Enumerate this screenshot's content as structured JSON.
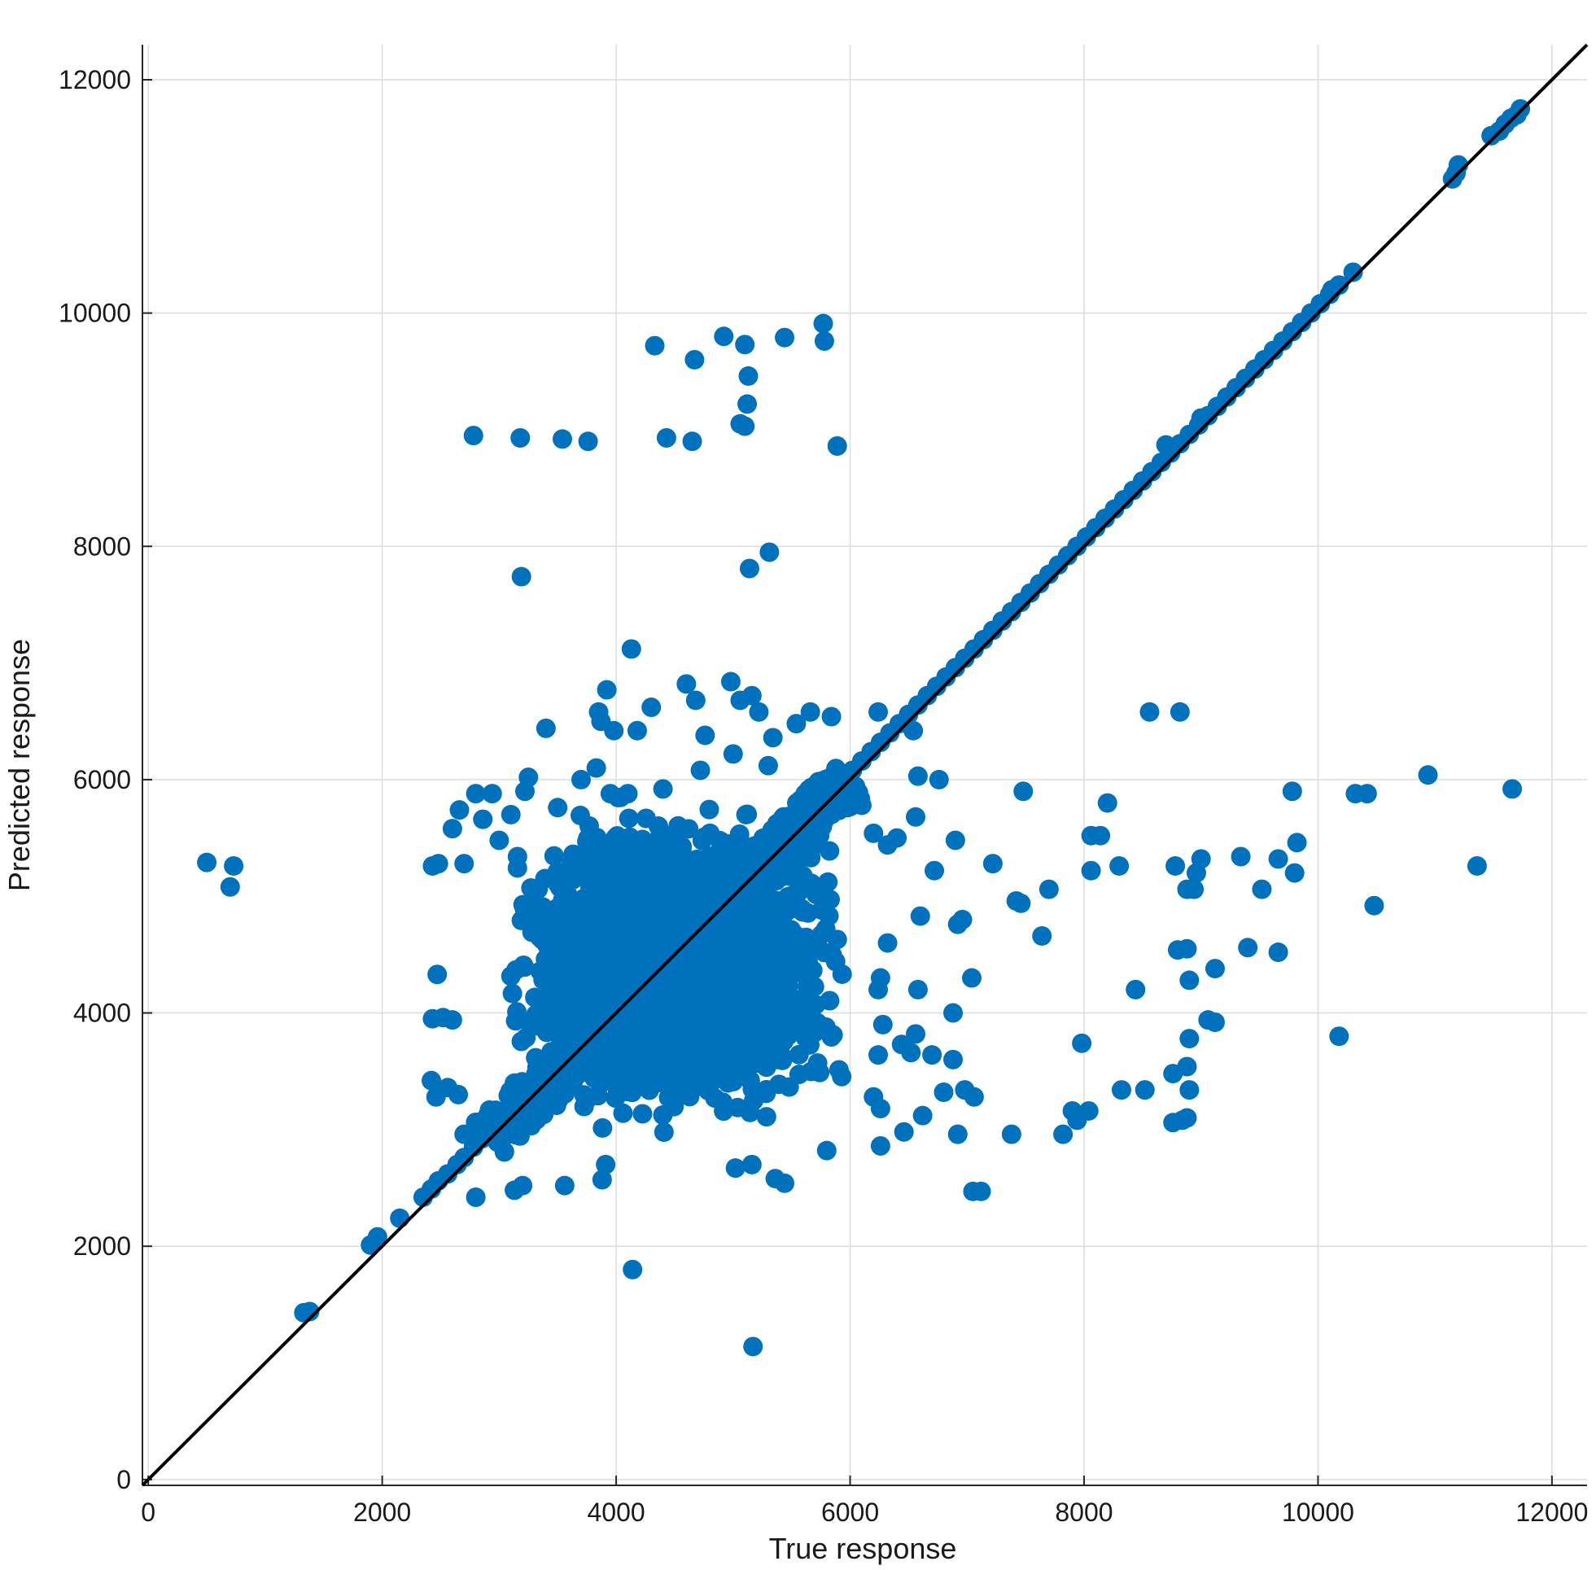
{
  "chart_data": {
    "type": "scatter",
    "title": "",
    "xlabel": "True response",
    "ylabel": "Predicted response",
    "xlim": [
      -50,
      12300
    ],
    "ylim": [
      -50,
      12300
    ],
    "xticks": [
      0,
      2000,
      4000,
      6000,
      8000,
      10000,
      12000
    ],
    "yticks": [
      0,
      2000,
      4000,
      6000,
      8000,
      10000,
      12000
    ],
    "xtick_labels": [
      "0",
      "2000",
      "4000",
      "6000",
      "8000",
      "10000",
      "12000"
    ],
    "ytick_labels": [
      "0",
      "2000",
      "4000",
      "6000",
      "8000",
      "10000",
      "12000"
    ],
    "grid": true,
    "marker_color": "#0072BD",
    "reference_line": {
      "type": "identity",
      "color": "#000000",
      "from": [
        -50,
        -50
      ],
      "to": [
        12300,
        12300
      ]
    },
    "series": [
      {
        "points": [
          [
            1330,
            1430
          ],
          [
            1380,
            1440
          ],
          [
            1900,
            2010
          ],
          [
            1960,
            2080
          ],
          [
            2150,
            2240
          ],
          [
            2350,
            2420
          ],
          [
            2420,
            2490
          ],
          [
            2480,
            2560
          ],
          [
            2560,
            2620
          ],
          [
            2640,
            2700
          ],
          [
            2700,
            2760
          ],
          [
            2780,
            2850
          ],
          [
            2850,
            2920
          ],
          [
            2900,
            2970
          ],
          [
            2980,
            3050
          ],
          [
            3060,
            3130
          ],
          [
            3150,
            3220
          ],
          [
            3220,
            3290
          ],
          [
            3300,
            3370
          ],
          [
            3380,
            3440
          ],
          [
            3460,
            3520
          ],
          [
            3540,
            3600
          ],
          [
            3620,
            3680
          ],
          [
            3700,
            3760
          ],
          [
            3780,
            3840
          ],
          [
            3860,
            3920
          ],
          [
            3940,
            4000
          ],
          [
            4020,
            4080
          ],
          [
            4100,
            4160
          ],
          [
            4180,
            4240
          ],
          [
            4260,
            4320
          ],
          [
            4340,
            4400
          ],
          [
            4420,
            4480
          ],
          [
            4500,
            4560
          ],
          [
            4580,
            4640
          ],
          [
            4660,
            4720
          ],
          [
            4740,
            4800
          ],
          [
            4820,
            4880
          ],
          [
            4900,
            4960
          ],
          [
            4980,
            5040
          ],
          [
            5060,
            5120
          ],
          [
            5140,
            5200
          ],
          [
            5220,
            5280
          ],
          [
            5300,
            5360
          ],
          [
            5380,
            5440
          ],
          [
            5460,
            5520
          ],
          [
            5540,
            5600
          ],
          [
            5620,
            5680
          ],
          [
            5700,
            5760
          ],
          [
            5780,
            5840
          ],
          [
            5860,
            5920
          ],
          [
            5940,
            6000
          ],
          [
            6020,
            6080
          ],
          [
            6100,
            6160
          ],
          [
            6180,
            6240
          ],
          [
            6260,
            6320
          ],
          [
            6340,
            6400
          ],
          [
            6420,
            6480
          ],
          [
            6500,
            6560
          ],
          [
            6580,
            6640
          ],
          [
            6660,
            6720
          ],
          [
            6740,
            6800
          ],
          [
            6820,
            6880
          ],
          [
            6900,
            6960
          ],
          [
            6980,
            7040
          ],
          [
            7060,
            7120
          ],
          [
            7140,
            7200
          ],
          [
            7220,
            7280
          ],
          [
            7300,
            7360
          ],
          [
            7380,
            7440
          ],
          [
            7460,
            7520
          ],
          [
            7540,
            7600
          ],
          [
            7620,
            7680
          ],
          [
            7700,
            7760
          ],
          [
            7780,
            7840
          ],
          [
            7860,
            7920
          ],
          [
            7940,
            8000
          ],
          [
            8020,
            8080
          ],
          [
            8100,
            8160
          ],
          [
            8180,
            8240
          ],
          [
            8260,
            8320
          ],
          [
            8340,
            8400
          ],
          [
            8420,
            8480
          ],
          [
            8500,
            8560
          ],
          [
            8580,
            8640
          ],
          [
            8660,
            8720
          ],
          [
            8740,
            8800
          ],
          [
            8820,
            8880
          ],
          [
            8900,
            8960
          ],
          [
            8980,
            9040
          ],
          [
            9060,
            9120
          ],
          [
            9140,
            9200
          ],
          [
            9220,
            9280
          ],
          [
            9300,
            9360
          ],
          [
            9380,
            9440
          ],
          [
            9460,
            9520
          ],
          [
            9540,
            9600
          ],
          [
            9620,
            9680
          ],
          [
            9700,
            9760
          ],
          [
            9780,
            9840
          ],
          [
            9860,
            9920
          ],
          [
            9940,
            10000
          ],
          [
            10020,
            10080
          ],
          [
            10100,
            10160
          ],
          [
            10180,
            10240
          ],
          [
            10300,
            10350
          ],
          [
            11150,
            11150
          ],
          [
            11180,
            11200
          ],
          [
            11200,
            11270
          ],
          [
            11480,
            11520
          ],
          [
            11550,
            11560
          ],
          [
            11600,
            11620
          ],
          [
            11650,
            11670
          ],
          [
            11700,
            11700
          ],
          [
            11730,
            11750
          ],
          [
            10120,
            10200
          ],
          [
            9000,
            9100
          ],
          [
            8700,
            8870
          ],
          [
            500,
            5290
          ],
          [
            700,
            5080
          ],
          [
            730,
            5260
          ],
          [
            2780,
            8950
          ],
          [
            3180,
            8930
          ],
          [
            3540,
            8920
          ],
          [
            3760,
            8900
          ],
          [
            4330,
            9720
          ],
          [
            4430,
            8930
          ],
          [
            4650,
            8900
          ],
          [
            4670,
            9600
          ],
          [
            4920,
            9800
          ],
          [
            5060,
            9050
          ],
          [
            5100,
            9030
          ],
          [
            5100,
            9730
          ],
          [
            5120,
            9220
          ],
          [
            5130,
            9460
          ],
          [
            5440,
            9790
          ],
          [
            5770,
            9910
          ],
          [
            5780,
            9760
          ],
          [
            5890,
            8860
          ],
          [
            3190,
            7740
          ],
          [
            5140,
            7810
          ],
          [
            5310,
            7950
          ],
          [
            4130,
            7120
          ],
          [
            3400,
            6440
          ],
          [
            3850,
            6580
          ],
          [
            3870,
            6500
          ],
          [
            3920,
            6770
          ],
          [
            3980,
            6420
          ],
          [
            4180,
            6420
          ],
          [
            4300,
            6620
          ],
          [
            4600,
            6820
          ],
          [
            4680,
            6680
          ],
          [
            4760,
            6380
          ],
          [
            4980,
            6840
          ],
          [
            5060,
            6680
          ],
          [
            5160,
            6720
          ],
          [
            5220,
            6580
          ],
          [
            5340,
            6360
          ],
          [
            5540,
            6480
          ],
          [
            5660,
            6580
          ],
          [
            5840,
            6540
          ],
          [
            6240,
            6580
          ],
          [
            6540,
            6420
          ],
          [
            3830,
            6100
          ],
          [
            4720,
            6080
          ],
          [
            5000,
            6220
          ],
          [
            5300,
            6120
          ],
          [
            2800,
            5880
          ],
          [
            2940,
            5880
          ],
          [
            2660,
            5740
          ],
          [
            2600,
            5580
          ],
          [
            2430,
            5260
          ],
          [
            2480,
            5280
          ],
          [
            2700,
            5280
          ],
          [
            2860,
            5660
          ],
          [
            3000,
            5480
          ],
          [
            3100,
            5700
          ],
          [
            3250,
            6020
          ],
          [
            3220,
            5900
          ],
          [
            3500,
            5760
          ],
          [
            3700,
            6000
          ],
          [
            3950,
            5880
          ],
          [
            4100,
            5880
          ],
          [
            4400,
            5920
          ],
          [
            2470,
            4330
          ],
          [
            2430,
            3950
          ],
          [
            2520,
            3960
          ],
          [
            2600,
            3940
          ],
          [
            2420,
            3420
          ],
          [
            2460,
            3280
          ],
          [
            2560,
            3360
          ],
          [
            2650,
            3300
          ],
          [
            2700,
            2960
          ],
          [
            2760,
            2940
          ],
          [
            2800,
            2420
          ],
          [
            3130,
            2480
          ],
          [
            3200,
            2520
          ],
          [
            3560,
            2520
          ],
          [
            3880,
            2570
          ],
          [
            3910,
            2700
          ],
          [
            4140,
            1800
          ],
          [
            5170,
            1140
          ],
          [
            5020,
            2670
          ],
          [
            5160,
            2700
          ],
          [
            5360,
            2580
          ],
          [
            5440,
            2540
          ],
          [
            5800,
            2820
          ],
          [
            6040,
            5900
          ],
          [
            6100,
            5780
          ],
          [
            6200,
            5540
          ],
          [
            6320,
            5440
          ],
          [
            6400,
            5500
          ],
          [
            6560,
            5680
          ],
          [
            6580,
            6030
          ],
          [
            6760,
            6000
          ],
          [
            6900,
            5480
          ],
          [
            6720,
            5220
          ],
          [
            6600,
            4830
          ],
          [
            6320,
            4600
          ],
          [
            6260,
            4300
          ],
          [
            6240,
            4200
          ],
          [
            6580,
            4200
          ],
          [
            6280,
            3900
          ],
          [
            6560,
            3820
          ],
          [
            6440,
            3730
          ],
          [
            6520,
            3660
          ],
          [
            6700,
            3640
          ],
          [
            6880,
            3600
          ],
          [
            6880,
            4000
          ],
          [
            6920,
            4760
          ],
          [
            6960,
            4800
          ],
          [
            7040,
            4300
          ],
          [
            6980,
            3340
          ],
          [
            7060,
            3280
          ],
          [
            6920,
            2960
          ],
          [
            6620,
            3120
          ],
          [
            6800,
            3320
          ],
          [
            6240,
            3640
          ],
          [
            6200,
            3280
          ],
          [
            6260,
            3180
          ],
          [
            6260,
            2860
          ],
          [
            6460,
            2980
          ],
          [
            7220,
            5280
          ],
          [
            7420,
            4960
          ],
          [
            7460,
            4940
          ],
          [
            7480,
            5900
          ],
          [
            7640,
            4660
          ],
          [
            7700,
            5060
          ],
          [
            7980,
            3740
          ],
          [
            7900,
            3160
          ],
          [
            7820,
            2960
          ],
          [
            7940,
            3080
          ],
          [
            8040,
            3160
          ],
          [
            8060,
            5220
          ],
          [
            8060,
            5520
          ],
          [
            8140,
            5520
          ],
          [
            8200,
            5800
          ],
          [
            8300,
            5260
          ],
          [
            8320,
            3340
          ],
          [
            8440,
            4200
          ],
          [
            8520,
            3340
          ],
          [
            8560,
            6580
          ],
          [
            8780,
            5260
          ],
          [
            8800,
            4540
          ],
          [
            8820,
            6580
          ],
          [
            8760,
            3480
          ],
          [
            8760,
            3060
          ],
          [
            8840,
            3080
          ],
          [
            8880,
            3100
          ],
          [
            8900,
            3340
          ],
          [
            8880,
            3540
          ],
          [
            8900,
            3780
          ],
          [
            8880,
            4550
          ],
          [
            8900,
            4280
          ],
          [
            8880,
            5060
          ],
          [
            8940,
            5060
          ],
          [
            8960,
            5200
          ],
          [
            9000,
            5320
          ],
          [
            9060,
            3940
          ],
          [
            9120,
            3920
          ],
          [
            9120,
            4380
          ],
          [
            9340,
            5340
          ],
          [
            9400,
            4560
          ],
          [
            9520,
            5060
          ],
          [
            9660,
            4520
          ],
          [
            9660,
            5320
          ],
          [
            9780,
            5900
          ],
          [
            9800,
            5200
          ],
          [
            9820,
            5460
          ],
          [
            10180,
            3800
          ],
          [
            10320,
            5880
          ],
          [
            10420,
            5880
          ],
          [
            10480,
            4920
          ],
          [
            10940,
            6040
          ],
          [
            11360,
            5260
          ],
          [
            11660,
            5920
          ],
          [
            7050,
            2470
          ],
          [
            7120,
            2470
          ],
          [
            7380,
            2960
          ]
        ],
        "cloud": {
          "description_free": true,
          "center": [
            4700,
            4500
          ],
          "x_range": [
            2900,
            6100
          ],
          "y_range": [
            2900,
            5900
          ]
        }
      }
    ]
  }
}
